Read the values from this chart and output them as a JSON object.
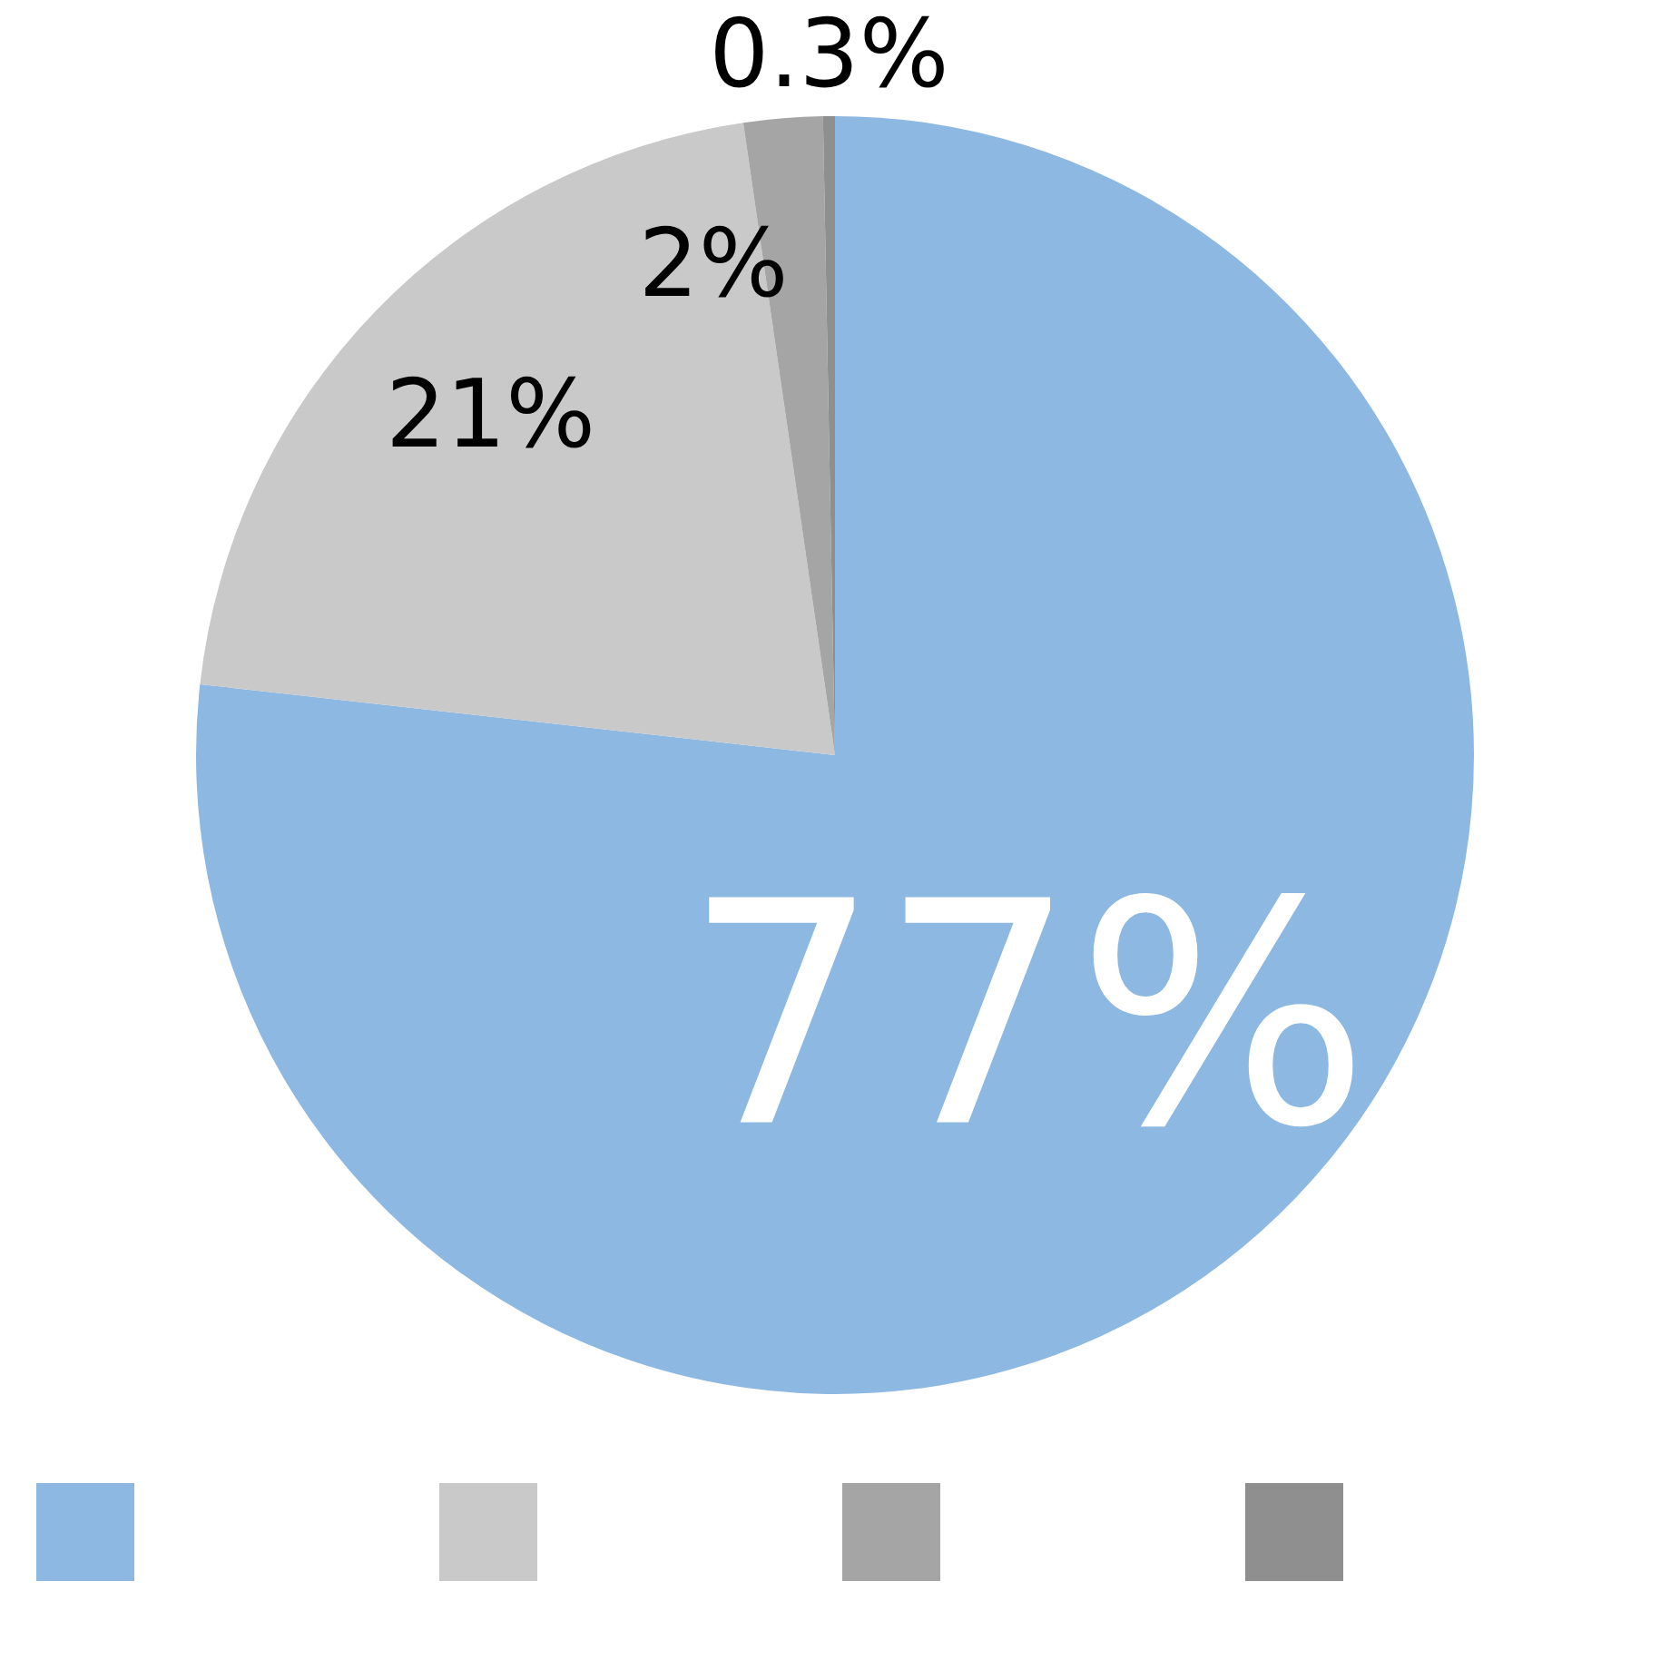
{
  "chart_data": {
    "type": "pie",
    "categories": [
      null,
      null,
      null,
      null
    ],
    "values": [
      77,
      21,
      2,
      0.3
    ],
    "colors": [
      "#8cb8e1",
      "#c9c9c9",
      "#a5a5a5",
      "#8f8f8f"
    ],
    "data_labels": true,
    "value_labels": [
      "77%",
      "21%",
      "2%",
      "0.3%"
    ]
  }
}
